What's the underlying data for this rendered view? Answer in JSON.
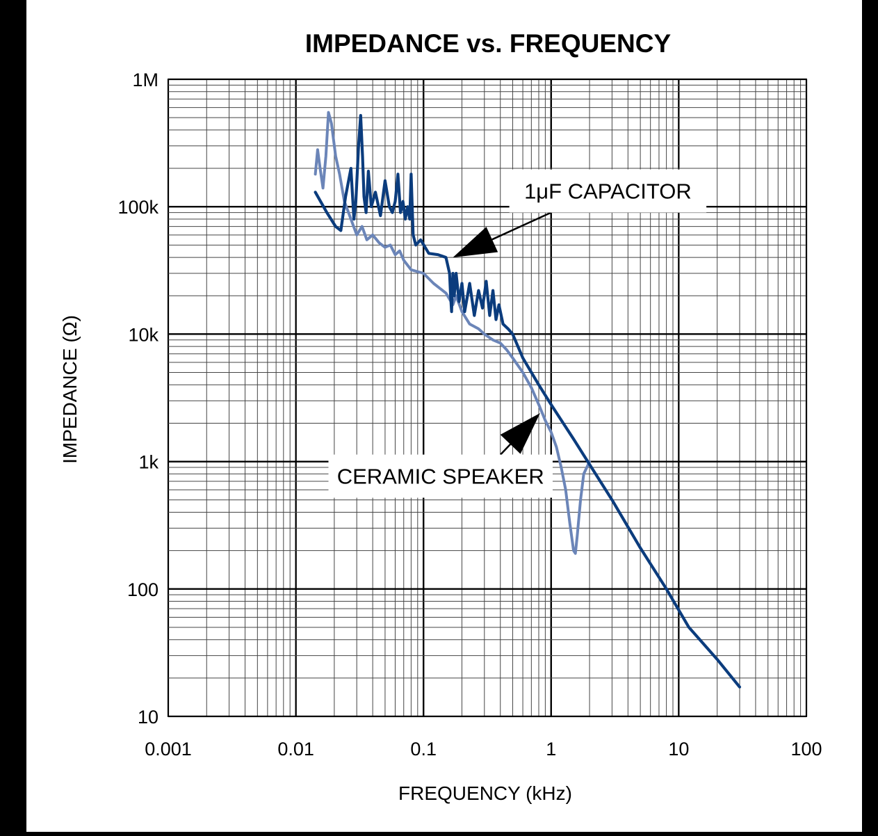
{
  "chart_data": {
    "type": "line",
    "title": "IMPEDANCE vs. FREQUENCY",
    "xlabel": "FREQUENCY (kHz)",
    "ylabel": "IMPEDANCE (Ω)",
    "xscale": "log",
    "yscale": "log",
    "xlim": [
      0.001,
      100
    ],
    "ylim": [
      10,
      1000000
    ],
    "grid": true,
    "x_ticks": [
      {
        "value": 0.001,
        "label": "0.001"
      },
      {
        "value": 0.01,
        "label": "0.01"
      },
      {
        "value": 0.1,
        "label": "0.1"
      },
      {
        "value": 1,
        "label": "1"
      },
      {
        "value": 10,
        "label": "10"
      },
      {
        "value": 100,
        "label": "100"
      }
    ],
    "y_ticks": [
      {
        "value": 10,
        "label": "10"
      },
      {
        "value": 100,
        "label": "100"
      },
      {
        "value": 1000,
        "label": "1k"
      },
      {
        "value": 10000,
        "label": "10k"
      },
      {
        "value": 100000,
        "label": "100k"
      },
      {
        "value": 1000000,
        "label": "1M"
      }
    ],
    "colors": {
      "capacitor": "#0b3c7d",
      "speaker": "#6b85b8"
    },
    "series": [
      {
        "key": "capacitor",
        "x": [
          0.0142,
          0.0175,
          0.0205,
          0.0225,
          0.0245,
          0.027,
          0.0285,
          0.0295,
          0.031,
          0.0322,
          0.0333,
          0.0342,
          0.0355,
          0.037,
          0.039,
          0.042,
          0.046,
          0.05,
          0.054,
          0.057,
          0.06,
          0.063,
          0.066,
          0.069,
          0.072,
          0.075,
          0.078,
          0.08,
          0.083,
          0.087,
          0.095,
          0.11,
          0.13,
          0.15,
          0.16,
          0.163,
          0.166,
          0.17,
          0.174,
          0.18,
          0.19,
          0.2,
          0.21,
          0.23,
          0.25,
          0.27,
          0.29,
          0.31,
          0.33,
          0.35,
          0.37,
          0.39,
          0.42,
          0.46,
          0.5,
          0.6,
          0.8,
          1,
          1.5,
          2,
          3,
          5,
          8,
          12,
          20,
          30
        ],
        "y": [
          130000,
          90000,
          70000,
          65000,
          120000,
          200000,
          80000,
          110000,
          300000,
          520000,
          250000,
          120000,
          90000,
          190000,
          100000,
          130000,
          85000,
          160000,
          100000,
          90000,
          110000,
          180000,
          90000,
          110000,
          80000,
          100000,
          80000,
          180000,
          60000,
          50000,
          55000,
          43000,
          42000,
          40000,
          30000,
          20000,
          15000,
          30000,
          20000,
          30000,
          18000,
          25000,
          15000,
          25000,
          14000,
          22000,
          16000,
          26000,
          14000,
          22000,
          13000,
          17000,
          12000,
          11000,
          10000,
          6500,
          4000,
          2800,
          1500,
          950,
          500,
          210,
          100,
          50,
          28,
          17
        ]
      },
      {
        "key": "speaker",
        "x": [
          0.0142,
          0.0148,
          0.0155,
          0.0163,
          0.0172,
          0.018,
          0.019,
          0.0205,
          0.022,
          0.024,
          0.027,
          0.03,
          0.033,
          0.036,
          0.04,
          0.045,
          0.05,
          0.055,
          0.06,
          0.065,
          0.07,
          0.08,
          0.1,
          0.12,
          0.15,
          0.17,
          0.18,
          0.2,
          0.23,
          0.27,
          0.3,
          0.35,
          0.4,
          0.45,
          0.5,
          0.6,
          0.7,
          0.8,
          0.9,
          1,
          1.1,
          1.2,
          1.3,
          1.4,
          1.5,
          1.55,
          1.6,
          1.7,
          1.8,
          2
        ],
        "y": [
          180000,
          280000,
          200000,
          140000,
          250000,
          550000,
          450000,
          250000,
          180000,
          110000,
          80000,
          60000,
          70000,
          55000,
          60000,
          52000,
          48000,
          50000,
          42000,
          45000,
          38000,
          32000,
          30000,
          25000,
          21000,
          17000,
          20000,
          15000,
          12000,
          11000,
          10000,
          9000,
          8500,
          7500,
          6500,
          5000,
          3800,
          2800,
          2100,
          1700,
          1300,
          900,
          600,
          330,
          200,
          190,
          260,
          500,
          800,
          1000
        ]
      }
    ],
    "annotations": [
      {
        "text": "1μF CAPACITOR",
        "target_series": "capacitor",
        "at": {
          "x": 0.17,
          "y": 40000
        },
        "label_at": {
          "x": 0.9,
          "y": 70000
        }
      },
      {
        "text": "CERAMIC SPEAKER",
        "target_series": "speaker",
        "at": {
          "x": 0.82,
          "y": 2400
        },
        "label_at": {
          "x": 0.12,
          "y": 1000
        }
      }
    ]
  }
}
